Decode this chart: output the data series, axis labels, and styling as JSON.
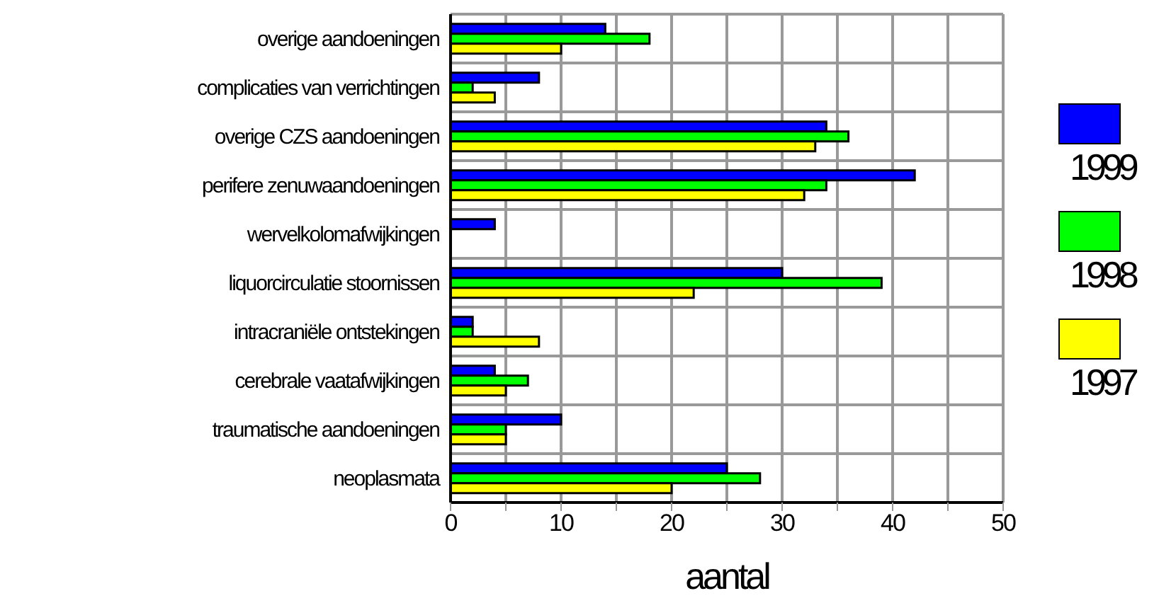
{
  "chart_data": {
    "type": "bar",
    "orientation": "horizontal",
    "xlabel": "aantal",
    "categories": [
      "overige aandoeningen",
      "complicaties van verrichtingen",
      "overige CZS aandoeningen",
      "perifere zenuwaandoeningen",
      "wervelkolomafwijkingen",
      "liquorcirculatie stoornissen",
      "intracraniële ontstekingen",
      "cerebrale vaatafwijkingen",
      "traumatische aandoeningen",
      "neoplasmata"
    ],
    "series": [
      {
        "name": "1999",
        "color": "#0000ff",
        "values": [
          14,
          8,
          34,
          42,
          4,
          30,
          2,
          4,
          10,
          25
        ]
      },
      {
        "name": "1998",
        "color": "#00ff00",
        "values": [
          18,
          2,
          36,
          34,
          null,
          39,
          2,
          7,
          5,
          28
        ]
      },
      {
        "name": "1997",
        "color": "#ffff00",
        "values": [
          10,
          4,
          33,
          32,
          null,
          22,
          8,
          5,
          5,
          20
        ]
      }
    ],
    "xlim": [
      0,
      50
    ],
    "xticks": [
      0,
      {
        "value": 5,
        "label": null
      },
      10,
      {
        "value": 15,
        "label": null
      },
      20,
      {
        "value": 25,
        "label": null
      },
      30,
      {
        "value": 35,
        "label": null
      },
      40,
      {
        "value": 45,
        "label": null
      },
      50
    ],
    "grid": true,
    "legend": "right"
  }
}
